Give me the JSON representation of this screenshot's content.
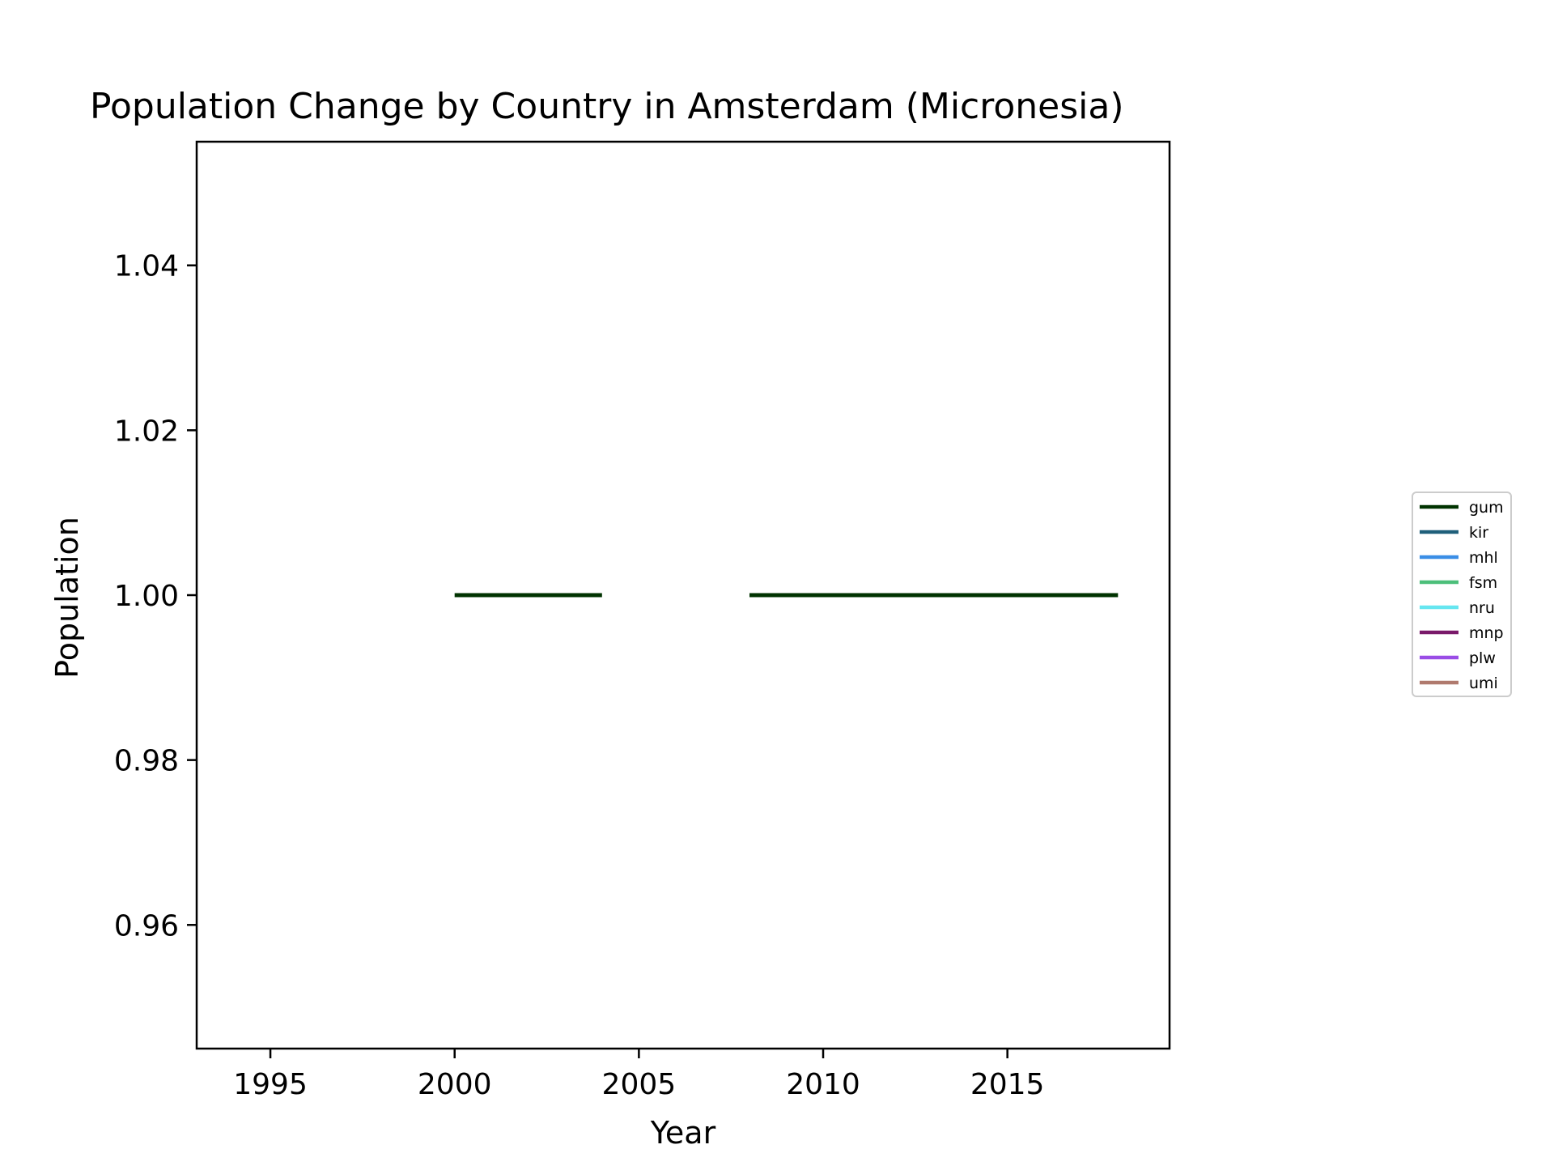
{
  "chart_data": {
    "type": "line",
    "title": "Population Change by Country in Amsterdam (Micronesia)",
    "xlabel": "Year",
    "ylabel": "Population",
    "xlim": [
      1993,
      2019.4
    ],
    "ylim": [
      0.945,
      1.055
    ],
    "xticks": [
      1995,
      2000,
      2005,
      2010,
      2015
    ],
    "yticks": [
      0.96,
      0.98,
      1.0,
      1.02,
      1.04
    ],
    "ytick_labels": [
      "0.96",
      "0.98",
      "1.00",
      "1.02",
      "1.04"
    ],
    "grid": false,
    "legend_position": "right",
    "series": [
      {
        "name": "gum",
        "color": "#003300",
        "points": [
          [
            2000,
            1
          ],
          [
            2001,
            1
          ],
          [
            2002,
            1
          ],
          [
            2003,
            1
          ],
          [
            2004,
            1
          ],
          [
            2005,
            null
          ],
          [
            2006,
            null
          ],
          [
            2007,
            null
          ],
          [
            2008,
            1
          ],
          [
            2009,
            1
          ],
          [
            2010,
            1
          ],
          [
            2011,
            1
          ],
          [
            2012,
            1
          ],
          [
            2013,
            1
          ],
          [
            2014,
            1
          ],
          [
            2015,
            1
          ],
          [
            2016,
            1
          ],
          [
            2017,
            1
          ],
          [
            2018,
            1
          ]
        ]
      },
      {
        "name": "kir",
        "color": "#1f5f7a",
        "points": []
      },
      {
        "name": "mhl",
        "color": "#3a8ee6",
        "points": []
      },
      {
        "name": "fsm",
        "color": "#4cbf7a",
        "points": []
      },
      {
        "name": "nru",
        "color": "#66e6f0",
        "points": []
      },
      {
        "name": "mnp",
        "color": "#7a1a6a",
        "points": []
      },
      {
        "name": "plw",
        "color": "#9a4de6",
        "points": []
      },
      {
        "name": "umi",
        "color": "#b07a6e",
        "points": []
      }
    ]
  }
}
